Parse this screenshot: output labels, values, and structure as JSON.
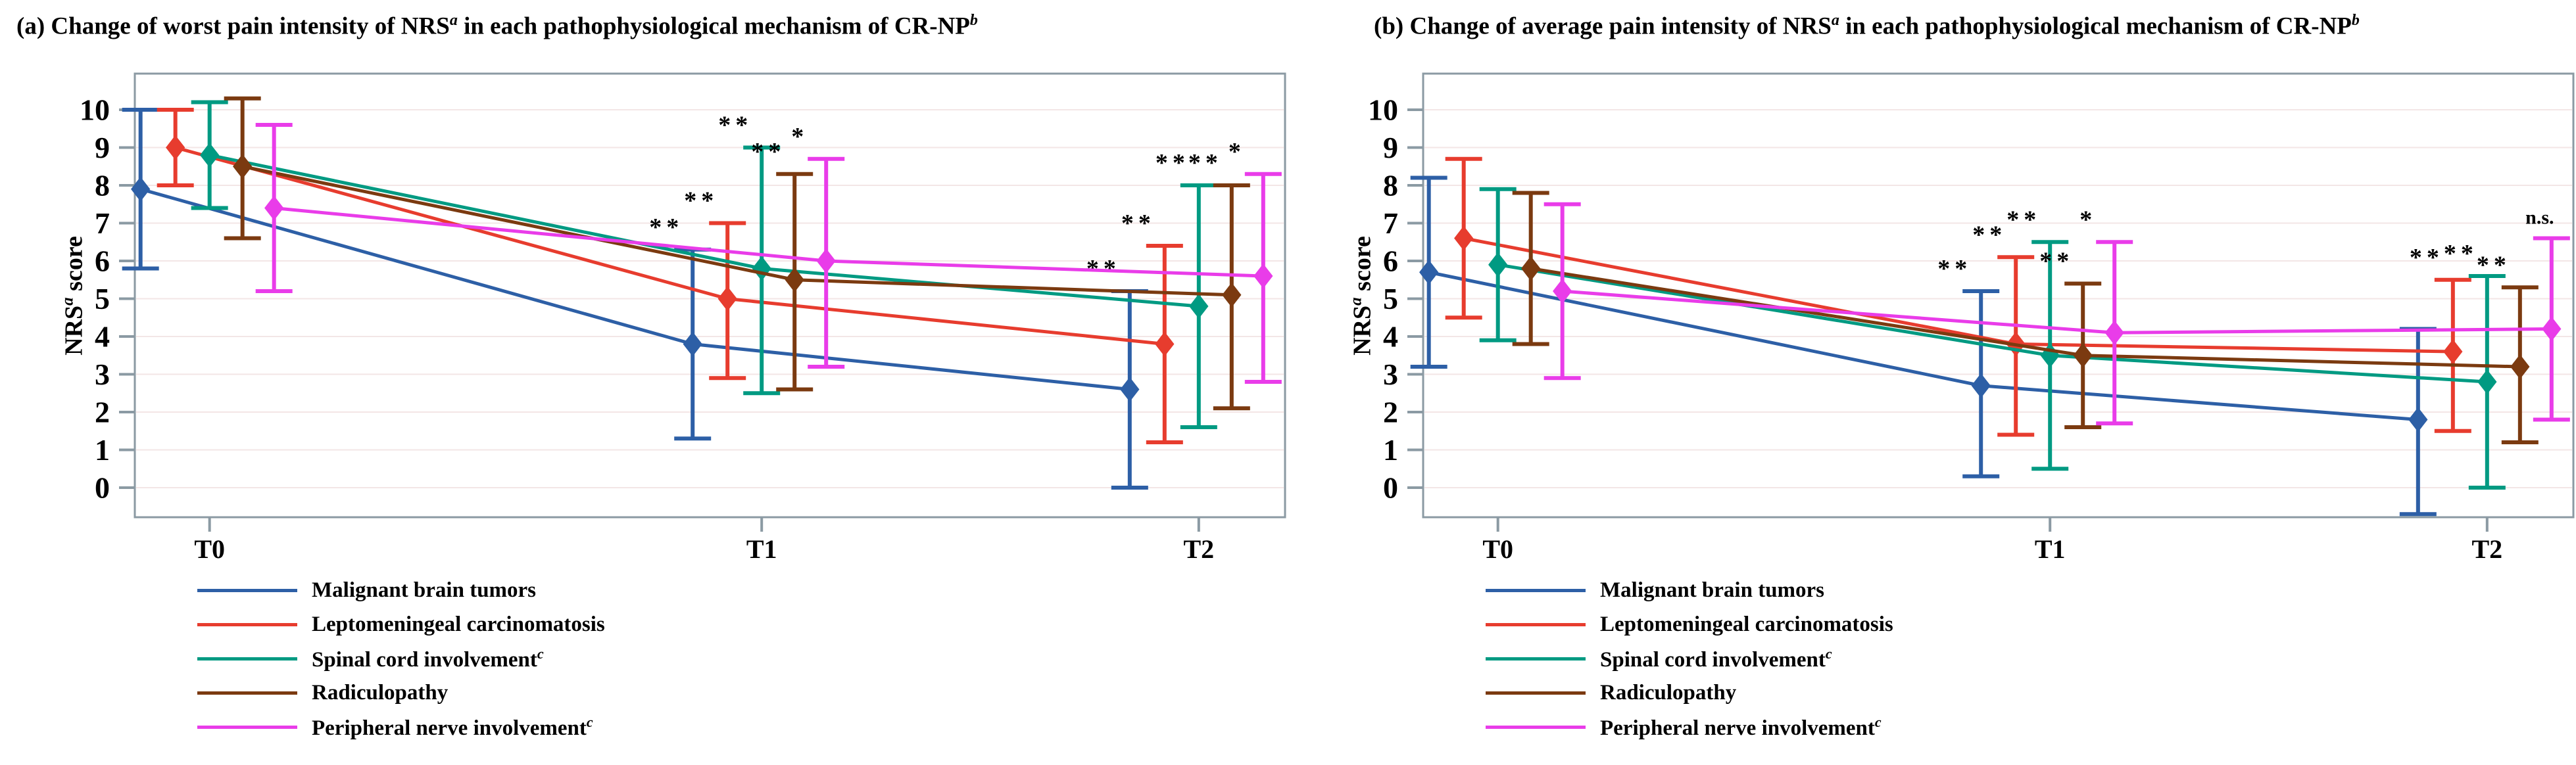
{
  "figure": {
    "background": "#ffffff",
    "axis_color": "#8b9aa3",
    "grid_color": "#f3e6e6",
    "sig_color": "#000000"
  },
  "chart_data": [
    {
      "type": "line",
      "panel": "a",
      "title_parts": {
        "pre": "(a) Change of worst pain intensity of NRS",
        "sup1": "a",
        "mid": " in each pathophysiological mechanism of CR-NP",
        "sup2": "b"
      },
      "ylabel_parts": {
        "pre": "NRS",
        "sup": "a",
        "post": " score"
      },
      "categories": [
        "T0",
        "T1",
        "T2"
      ],
      "yticks": [
        0,
        1,
        2,
        3,
        4,
        5,
        6,
        7,
        8,
        9,
        10
      ],
      "ylim": [
        0,
        10
      ],
      "grid": "faint-horizontal",
      "legend_position": "bottom-left",
      "series": [
        {
          "name": "Malignant brain tumors",
          "name_sup": "",
          "color": "#2d5fa6",
          "means": [
            7.9,
            3.8,
            2.6
          ],
          "err_low": [
            5.8,
            1.3,
            0.0
          ],
          "err_high": [
            10.0,
            6.3,
            5.2
          ],
          "sig": [
            "",
            "**",
            "**"
          ]
        },
        {
          "name": "Leptomeningeal carcinomatosis",
          "name_sup": "",
          "color": "#e73c2e",
          "means": [
            9.0,
            5.0,
            3.8
          ],
          "err_low": [
            8.0,
            2.9,
            1.2
          ],
          "err_high": [
            10.0,
            7.0,
            6.4
          ],
          "sig": [
            "",
            "**",
            "**"
          ]
        },
        {
          "name": "Spinal cord involvement",
          "name_sup": "c",
          "color": "#009a82",
          "means": [
            8.8,
            5.8,
            4.8
          ],
          "err_low": [
            7.4,
            2.5,
            1.6
          ],
          "err_high": [
            10.2,
            9.0,
            8.0
          ],
          "sig": [
            "",
            "**",
            "**"
          ]
        },
        {
          "name": "Radiculopathy",
          "name_sup": "",
          "color": "#7b3a10",
          "means": [
            8.5,
            5.5,
            5.1
          ],
          "err_low": [
            6.6,
            2.6,
            2.1
          ],
          "err_high": [
            10.3,
            8.3,
            8.0
          ],
          "sig": [
            "",
            "**",
            "**"
          ]
        },
        {
          "name": "Peripheral nerve involvement",
          "name_sup": "c",
          "color": "#e93ce9",
          "means": [
            7.4,
            6.0,
            5.6
          ],
          "err_low": [
            5.2,
            3.2,
            2.8
          ],
          "err_high": [
            9.6,
            8.7,
            8.3
          ],
          "sig": [
            "",
            "*",
            "*"
          ]
        }
      ]
    },
    {
      "type": "line",
      "panel": "b",
      "title_parts": {
        "pre": "(b) Change of average pain intensity of NRS",
        "sup1": "a",
        "mid": " in each pathophysiological mechanism of CR-NP",
        "sup2": "b"
      },
      "ylabel_parts": {
        "pre": "NRS",
        "sup": "a",
        "post": " score"
      },
      "categories": [
        "T0",
        "T1",
        "T2"
      ],
      "yticks": [
        0,
        1,
        2,
        3,
        4,
        5,
        6,
        7,
        8,
        9,
        10
      ],
      "ylim": [
        0,
        10
      ],
      "grid": "faint-horizontal",
      "legend_position": "bottom-left",
      "series": [
        {
          "name": "Malignant brain tumors",
          "name_sup": "",
          "color": "#2d5fa6",
          "means": [
            5.7,
            2.7,
            1.8
          ],
          "err_low": [
            3.2,
            0.3,
            -0.7
          ],
          "err_high": [
            8.2,
            5.2,
            4.2
          ],
          "sig": [
            "",
            "**",
            ""
          ]
        },
        {
          "name": "Leptomeningeal carcinomatosis",
          "name_sup": "",
          "color": "#e73c2e",
          "means": [
            6.6,
            3.8,
            3.6
          ],
          "err_low": [
            4.5,
            1.4,
            1.5
          ],
          "err_high": [
            8.7,
            6.1,
            5.5
          ],
          "sig": [
            "",
            "**",
            "**"
          ]
        },
        {
          "name": "Spinal cord involvement",
          "name_sup": "c",
          "color": "#009a82",
          "means": [
            5.9,
            3.5,
            2.8
          ],
          "err_low": [
            3.9,
            0.5,
            0.0
          ],
          "err_high": [
            7.9,
            6.5,
            5.6
          ],
          "sig": [
            "",
            "**",
            "**"
          ]
        },
        {
          "name": "Radiculopathy",
          "name_sup": "",
          "color": "#7b3a10",
          "means": [
            5.8,
            3.5,
            3.2
          ],
          "err_low": [
            3.8,
            1.6,
            1.2
          ],
          "err_high": [
            7.8,
            5.4,
            5.3
          ],
          "sig": [
            "",
            "**",
            "**"
          ]
        },
        {
          "name": "Peripheral nerve involvement",
          "name_sup": "c",
          "color": "#e93ce9",
          "means": [
            5.2,
            4.1,
            4.2
          ],
          "err_low": [
            2.9,
            1.7,
            1.8
          ],
          "err_high": [
            7.5,
            6.5,
            6.6
          ],
          "sig": [
            "",
            "*",
            "n.s."
          ]
        }
      ]
    }
  ]
}
